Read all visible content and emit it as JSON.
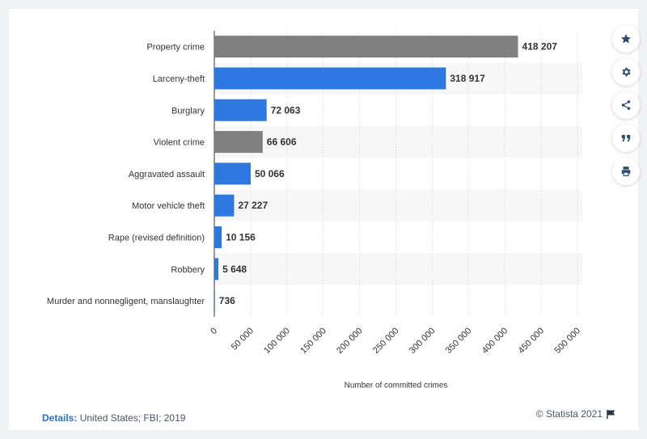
{
  "chart_data": {
    "type": "bar",
    "orientation": "horizontal",
    "categories": [
      "Property crime",
      "Larceny-theft",
      "Burglary",
      "Violent crime",
      "Aggravated assault",
      "Motor vehicle theft",
      "Rape (revised definition)",
      "Robbery",
      "Murder and nonnegligent, manslaughter"
    ],
    "values": [
      418207,
      318917,
      72063,
      66606,
      50066,
      27227,
      10156,
      5648,
      736
    ],
    "value_labels": [
      "418 207",
      "318 917",
      "72 063",
      "66 606",
      "50 066",
      "27 227",
      "10 156",
      "5 648",
      "736"
    ],
    "bar_colors": [
      "#808080",
      "#2e78e0",
      "#2e78e0",
      "#808080",
      "#2e78e0",
      "#2e78e0",
      "#2e78e0",
      "#2e78e0",
      "#2e78e0"
    ],
    "xlabel": "Number of committed crimes",
    "ylabel": "",
    "xlim": [
      0,
      500000
    ],
    "xticks": [
      0,
      50000,
      100000,
      150000,
      200000,
      250000,
      300000,
      350000,
      400000,
      450000,
      500000
    ],
    "xtick_labels": [
      "0",
      "50 000",
      "100 000",
      "150 000",
      "200 000",
      "250 000",
      "300 000",
      "350 000",
      "400 000",
      "450 000",
      "500 000"
    ],
    "grid": true,
    "alternating_row_bands": true
  },
  "sidebar": {
    "buttons": [
      {
        "name": "favorite-button",
        "icon": "star-icon"
      },
      {
        "name": "settings-button",
        "icon": "gear-icon"
      },
      {
        "name": "share-button",
        "icon": "share-icon"
      },
      {
        "name": "cite-button",
        "icon": "quote-icon"
      },
      {
        "name": "print-button",
        "icon": "print-icon"
      }
    ]
  },
  "footer": {
    "details_label": "Details:",
    "details_text": "United States; FBI; 2019",
    "credit": "© Statista 2021"
  },
  "colors": {
    "accent": "#2e78e0",
    "aggregate_bar": "#808080",
    "icon": "#2f4a6d",
    "band": "#f7f7f7"
  }
}
